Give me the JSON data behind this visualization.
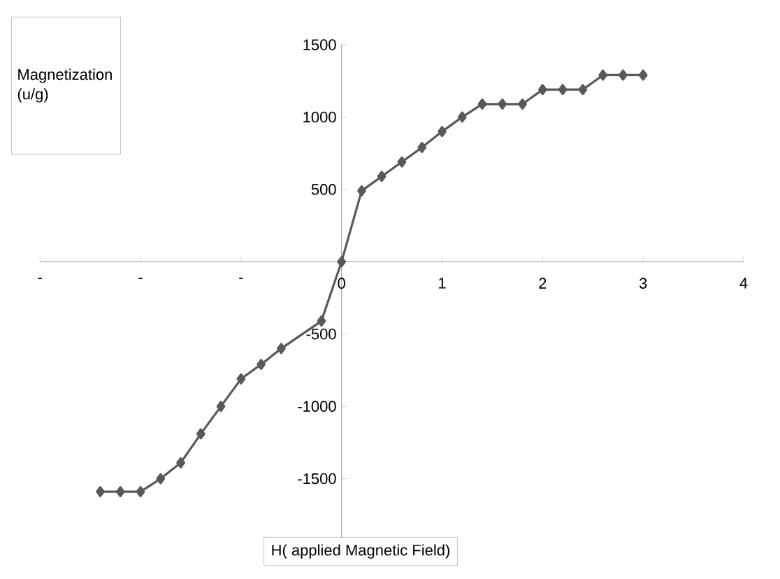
{
  "chart_data": {
    "type": "line",
    "xlabel": "H( applied Magnetic Field)",
    "ylabel": "Magnetization (u/g)",
    "x": [
      -2.4,
      -2.2,
      -2.0,
      -1.8,
      -1.6,
      -1.4,
      -1.2,
      -1.0,
      -0.8,
      -0.6,
      -0.2,
      0,
      0.2,
      0.4,
      0.6,
      0.8,
      1.0,
      1.2,
      1.4,
      1.6,
      1.8,
      2.0,
      2.2,
      2.4,
      2.6,
      2.8,
      3.0
    ],
    "series": [
      {
        "color": "#595959",
        "values": [
          -1590,
          -1590,
          -1590,
          -1500,
          -1390,
          -1190,
          -1000,
          -810,
          -710,
          -600,
          -410,
          0,
          490,
          590,
          690,
          790,
          900,
          1000,
          1090,
          1090,
          1090,
          1190,
          1190,
          1190,
          1290,
          1290,
          1290
        ]
      }
    ],
    "xlim": [
      -3,
      4
    ],
    "xticks": [
      {
        "value": -3,
        "label": "-"
      },
      {
        "value": -2,
        "label": "-"
      },
      {
        "value": -1,
        "label": "-"
      },
      0,
      1,
      2,
      3,
      4
    ],
    "ylim": [
      -2000,
      1500
    ],
    "yticks": [
      -1500,
      -1000,
      -500,
      500,
      1000,
      1500
    ],
    "marker": "diamond",
    "line_style": "solid",
    "grid": false
  }
}
